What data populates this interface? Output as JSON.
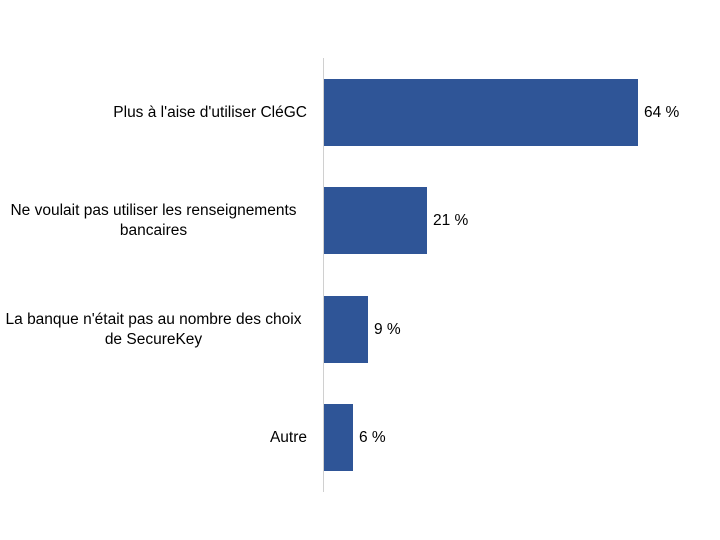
{
  "chart_data": {
    "type": "bar",
    "orientation": "horizontal",
    "title": "",
    "xlabel": "",
    "ylabel": "",
    "categories": [
      "Plus à l'aise d'utiliser CléGC",
      "Ne voulait pas utiliser les renseignements bancaires",
      "La banque n'était pas au nombre des choix de SecureKey",
      "Autre"
    ],
    "values": [
      64,
      21,
      9,
      6
    ],
    "value_labels": [
      "64 %",
      "21 %",
      "9 %",
      "6 %"
    ],
    "unit": "%",
    "xlim": [
      0,
      100
    ],
    "grid": false,
    "legend": null,
    "bar_color": "#2f5597"
  },
  "rows": [
    {
      "label_lines": [
        "Plus à l'aise d'utiliser CléGC"
      ],
      "value": 64,
      "value_label": "64 %"
    },
    {
      "label_lines": [
        "Ne voulait pas utiliser les",
        "renseignements bancaires"
      ],
      "value": 21,
      "value_label": "21 %"
    },
    {
      "label_lines": [
        "La banque n'était pas au nombre des",
        "choix de SecureKey"
      ],
      "value": 9,
      "value_label": "9 %"
    },
    {
      "label_lines": [
        "Autre"
      ],
      "value": 6,
      "value_label": "6 %"
    }
  ],
  "colors": {
    "bar": "#2f5597",
    "axis": "#d0d0d0"
  }
}
